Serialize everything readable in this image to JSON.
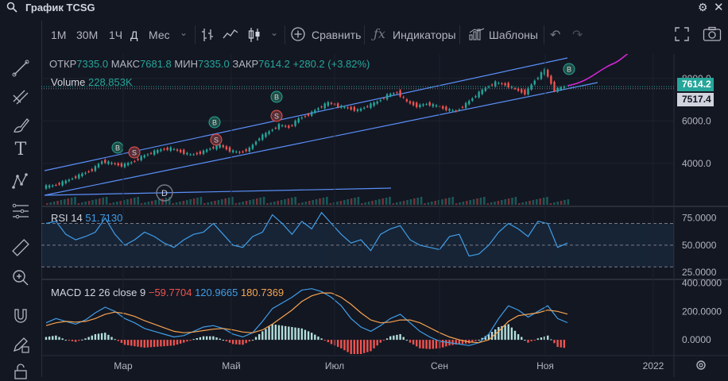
{
  "window": {
    "title": "График TCSG"
  },
  "toolbar": {
    "timeframes": [
      "1M",
      "30M",
      "1Ч",
      "Д",
      "Мес"
    ],
    "active_timeframe": "Д",
    "compare_label": "Сравнить",
    "indicators_label": "Индикаторы",
    "templates_label": "Шаблоны"
  },
  "legend": {
    "open_label": "ОТКР",
    "open": "7335.0",
    "high_label": "МАКС",
    "high": "7681.8",
    "low_label": "МИН",
    "low": "7335.0",
    "close_label": "ЗАКР",
    "close": "7614.2",
    "change": "+280.2 (+3.82%)",
    "volume_label": "Volume",
    "volume": "228.853K"
  },
  "rsi_legend": {
    "label": "RSI 14",
    "value": "51.7130"
  },
  "macd_legend": {
    "label": "MACD 12 26 close 9",
    "hist": "−59.7704",
    "macd": "120.9665",
    "signal": "180.7369"
  },
  "price_labels": {
    "last": "7614.2",
    "prev": "7517.4"
  },
  "colors": {
    "up": "#26a69a",
    "down": "#ef5350",
    "channel": "#5b8ff9",
    "rsi": "#3f9ee8",
    "macd": "#3f9ee8",
    "signal": "#f7a350",
    "forecast": "#d926d9"
  },
  "chart_data": [
    {
      "type": "candlestick",
      "x_ticks": [
        "Мар",
        "Май",
        "Июл",
        "Сен",
        "Ноя",
        "2022"
      ],
      "y_ticks": [
        4000,
        6000,
        8000
      ],
      "ylim": [
        2500,
        9000
      ],
      "close_path": [
        2900,
        2950,
        3100,
        3300,
        3500,
        3700,
        4100,
        4000,
        3900,
        4050,
        4300,
        4500,
        4650,
        4700,
        4550,
        4400,
        4500,
        4700,
        4850,
        4600,
        4500,
        4700,
        5200,
        5500,
        5800,
        5700,
        6100,
        6300,
        6600,
        6850,
        6700,
        6600,
        6500,
        6700,
        6900,
        7200,
        7350,
        6900,
        6700,
        6800,
        6700,
        6550,
        6450,
        6800,
        7200,
        7550,
        7800,
        7700,
        7500,
        7300,
        7900,
        8400,
        7450,
        7614
      ],
      "signals": [
        {
          "label": "B",
          "type": "buy"
        },
        {
          "label": "S",
          "type": "sell"
        },
        {
          "label": "S",
          "type": "sell"
        },
        {
          "label": "B",
          "type": "buy"
        },
        {
          "label": "S",
          "type": "sell"
        },
        {
          "label": "B",
          "type": "buy"
        },
        {
          "label": "B",
          "type": "buy"
        }
      ],
      "annotation": "D"
    },
    {
      "type": "line",
      "name": "RSI 14",
      "y_ticks": [
        25,
        50,
        75
      ],
      "ylim": [
        20,
        85
      ],
      "band": [
        30,
        70
      ],
      "values": [
        70,
        72,
        60,
        55,
        58,
        62,
        75,
        60,
        50,
        55,
        62,
        58,
        52,
        48,
        55,
        60,
        62,
        70,
        60,
        50,
        48,
        58,
        62,
        78,
        70,
        60,
        72,
        65,
        80,
        70,
        60,
        52,
        55,
        45,
        60,
        65,
        68,
        55,
        50,
        48,
        46,
        58,
        60,
        40,
        42,
        50,
        62,
        70,
        65,
        58,
        72,
        70,
        48,
        52
      ]
    },
    {
      "type": "line",
      "name": "MACD 12 26 close 9",
      "y_ticks": [
        0,
        200,
        400
      ],
      "ylim": [
        -100,
        420
      ],
      "macd": [
        120,
        150,
        130,
        110,
        140,
        190,
        230,
        200,
        150,
        120,
        80,
        60,
        40,
        20,
        30,
        60,
        90,
        100,
        80,
        40,
        20,
        50,
        130,
        220,
        260,
        300,
        350,
        360,
        340,
        300,
        240,
        150,
        90,
        60,
        100,
        150,
        180,
        120,
        60,
        20,
        -10,
        -20,
        -30,
        -40,
        -20,
        40,
        150,
        240,
        210,
        160,
        200,
        240,
        150,
        121
      ],
      "signal": [
        100,
        120,
        130,
        125,
        130,
        150,
        180,
        195,
        185,
        165,
        135,
        110,
        85,
        60,
        50,
        55,
        65,
        75,
        80,
        70,
        55,
        50,
        70,
        110,
        160,
        210,
        270,
        310,
        330,
        330,
        300,
        250,
        190,
        140,
        120,
        125,
        140,
        140,
        120,
        85,
        50,
        20,
        0,
        -15,
        -20,
        0,
        60,
        130,
        170,
        180,
        190,
        210,
        200,
        181
      ]
    }
  ]
}
